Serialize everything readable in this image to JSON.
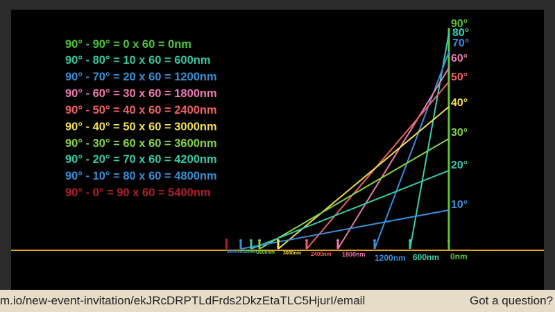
{
  "equations": [
    {
      "text": "90° - 90° = 0 x 60 = 0nm",
      "color": "#4fc43a"
    },
    {
      "text": "90° - 80° = 10 x 60 = 600nm",
      "color": "#38c4a0"
    },
    {
      "text": "90° - 70° = 20 x 60 = 1200nm",
      "color": "#3a8fd6"
    },
    {
      "text": "90° - 60° = 30 x 60 = 1800nm",
      "color": "#f07ab0"
    },
    {
      "text": "90° - 50° = 40 x 60 = 2400nm",
      "color": "#f06262"
    },
    {
      "text": "90° - 40° = 50 x 60 = 3000nm",
      "color": "#f2e055"
    },
    {
      "text": "90° - 30° = 60 x 60 = 3600nm",
      "color": "#86d44a"
    },
    {
      "text": "90° - 20° = 70 x 60 = 4200nm",
      "color": "#38c9a8"
    },
    {
      "text": "90° - 10° = 80 x 60 = 4800nm",
      "color": "#3a8fd6"
    },
    {
      "text": "90° - 0° = 90 x 60 = 5400nm",
      "color": "#b0202a"
    }
  ],
  "angles": [
    {
      "label": "90°",
      "color": "#5cc43a"
    },
    {
      "label": "80°",
      "color": "#3ad0b0"
    },
    {
      "label": "70°",
      "color": "#3a8fe0"
    },
    {
      "label": "60°",
      "color": "#f07ab0"
    },
    {
      "label": "50°",
      "color": "#f06262"
    },
    {
      "label": "40°",
      "color": "#f2e055"
    },
    {
      "label": "30°",
      "color": "#86d44a"
    },
    {
      "label": "20°",
      "color": "#38c9a8"
    },
    {
      "label": "10°",
      "color": "#3a8fd6"
    }
  ],
  "distances": [
    {
      "label": "0nm",
      "color": "#5cc43a"
    },
    {
      "label": "600nm",
      "color": "#3ad0b0"
    },
    {
      "label": "1200nm",
      "color": "#3a8fe0"
    },
    {
      "label": "1800nm",
      "color": "#f07ab0"
    },
    {
      "label": "2400nm",
      "color": "#f06262"
    },
    {
      "label": "3000nm",
      "color": "#f2e055"
    },
    {
      "label": "3600nm",
      "color": "#86d44a"
    },
    {
      "label": "4200nm",
      "color": "#38c9a8"
    },
    {
      "label": "4800nm",
      "color": "#3a8fd6"
    }
  ],
  "colors": {
    "horizon": "#e0a420",
    "pole": "#5cc43a",
    "red_figure": "#b0202a",
    "slide_bg": "#000000",
    "bar_bg": "#e6dcc7"
  },
  "bottom_bar": {
    "url": "m.io/new-event-invitation/ekJRcDRPTLdFrds2DkzEtaTLC5HjurI/email",
    "question": "Got a question?"
  }
}
